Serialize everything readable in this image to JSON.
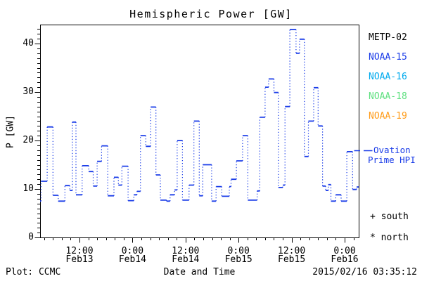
{
  "title": "Hemispheric Power [GW]",
  "y_axis_label": "P [GW]",
  "x_axis_label": "Date and Time",
  "footer": {
    "left": "Plot: CCMC",
    "timestamp": "2015/02/16 03:35:12"
  },
  "legend": {
    "satellites": [
      {
        "label": "METP-02",
        "color": "#000000"
      },
      {
        "label": "NOAA-15",
        "color": "#1a3ce8"
      },
      {
        "label": "NOAA-16",
        "color": "#00aaee"
      },
      {
        "label": "NOAA-18",
        "color": "#5fe080"
      },
      {
        "label": "NOAA-19",
        "color": "#ff9c1a"
      }
    ],
    "line_label_line1": "Ovation",
    "line_label_line2": "Prime HPI",
    "line_dash_prefix": "—",
    "line_color": "#1a3ce8",
    "south_marker": "+ south",
    "north_marker": "* north"
  },
  "chart_data": {
    "type": "line",
    "style": "steps",
    "title": "Hemispheric Power [GW]",
    "xlabel": "Date and Time",
    "ylabel": "P [GW]",
    "x_unit": "hours since 2015-02-13 00:00",
    "xlim": [
      3.05,
      75.25
    ],
    "ylim": [
      0,
      44
    ],
    "grid": false,
    "legend_position": "right-outside",
    "x_major_ticks": [
      {
        "t": 12,
        "time": "12:00",
        "date": "Feb13"
      },
      {
        "t": 24,
        "time": "0:00",
        "date": "Feb14"
      },
      {
        "t": 36,
        "time": "12:00",
        "date": "Feb14"
      },
      {
        "t": 48,
        "time": "0:00",
        "date": "Feb15"
      },
      {
        "t": 60,
        "time": "12:00",
        "date": "Feb15"
      },
      {
        "t": 72,
        "time": "0:00",
        "date": "Feb16"
      }
    ],
    "x_minor_step_hours": 2,
    "y_major_ticks": [
      {
        "v": 0,
        "label": "0"
      },
      {
        "v": 10,
        "label": "10"
      },
      {
        "v": 20,
        "label": "20"
      },
      {
        "v": 30,
        "label": "30"
      },
      {
        "v": 40,
        "label": "40"
      }
    ],
    "y_minor_step": 1,
    "series": [
      {
        "name": "Ovation Prime HPI",
        "color": "#1a3ce8",
        "steps": [
          [
            3.05,
            7.5
          ],
          [
            3.3,
            11.6
          ],
          [
            4.7,
            22.8
          ],
          [
            6.0,
            8.7
          ],
          [
            7.2,
            7.5
          ],
          [
            8.7,
            10.7
          ],
          [
            9.8,
            9.7
          ],
          [
            10.4,
            23.8
          ],
          [
            11.2,
            8.8
          ],
          [
            12.6,
            14.8
          ],
          [
            14.1,
            13.6
          ],
          [
            15.1,
            10.6
          ],
          [
            16.0,
            15.7
          ],
          [
            17.0,
            18.9
          ],
          [
            18.4,
            8.6
          ],
          [
            19.8,
            12.4
          ],
          [
            20.8,
            10.8
          ],
          [
            21.6,
            14.7
          ],
          [
            23.0,
            7.6
          ],
          [
            24.3,
            8.8
          ],
          [
            25.0,
            9.5
          ],
          [
            25.8,
            21.0
          ],
          [
            27.0,
            18.8
          ],
          [
            28.1,
            26.9
          ],
          [
            29.3,
            12.9
          ],
          [
            30.3,
            7.7
          ],
          [
            31.7,
            7.5
          ],
          [
            32.5,
            8.8
          ],
          [
            33.5,
            9.8
          ],
          [
            34.1,
            20.0
          ],
          [
            35.3,
            7.7
          ],
          [
            36.8,
            10.8
          ],
          [
            37.9,
            24.0
          ],
          [
            39.1,
            8.6
          ],
          [
            39.9,
            15.0
          ],
          [
            41.9,
            7.5
          ],
          [
            42.9,
            10.5
          ],
          [
            44.2,
            8.5
          ],
          [
            45.9,
            10.5
          ],
          [
            46.3,
            12.0
          ],
          [
            47.5,
            15.8
          ],
          [
            48.9,
            21.0
          ],
          [
            50.1,
            7.7
          ],
          [
            52.2,
            9.6
          ],
          [
            52.8,
            24.8
          ],
          [
            54.0,
            31.0
          ],
          [
            54.8,
            32.7
          ],
          [
            56.0,
            29.9
          ],
          [
            57.0,
            10.3
          ],
          [
            58.0,
            10.8
          ],
          [
            58.5,
            27.0
          ],
          [
            59.6,
            42.9
          ],
          [
            61.0,
            38.0
          ],
          [
            61.8,
            40.9
          ],
          [
            62.9,
            16.7
          ],
          [
            63.8,
            24.0
          ],
          [
            65.0,
            30.9
          ],
          [
            66.0,
            23.0
          ],
          [
            67.0,
            10.6
          ],
          [
            67.7,
            9.7
          ],
          [
            68.3,
            10.9
          ],
          [
            68.9,
            7.5
          ],
          [
            70.0,
            8.8
          ],
          [
            71.2,
            7.5
          ],
          [
            72.5,
            17.7
          ],
          [
            73.8,
            9.9
          ],
          [
            74.7,
            10.4
          ],
          [
            75.25,
            10.4
          ]
        ]
      }
    ]
  }
}
